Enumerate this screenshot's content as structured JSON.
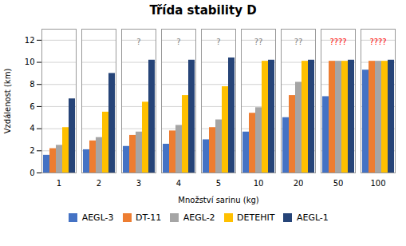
{
  "chart_data": {
    "type": "bar",
    "title": "Třída stability D",
    "xlabel": "Množství sarinu (kg)",
    "ylabel": "Vzdálenost (km)",
    "categories": [
      "1",
      "2",
      "3",
      "4",
      "5",
      "10",
      "20",
      "50",
      "100"
    ],
    "series": [
      {
        "name": "AEGL-3",
        "color": "#4472C4",
        "values": [
          1.6,
          2.1,
          2.4,
          2.6,
          3.0,
          3.7,
          5.0,
          6.9,
          9.3
        ]
      },
      {
        "name": "DT-11",
        "color": "#ED7D31",
        "values": [
          2.2,
          2.9,
          3.4,
          3.8,
          4.1,
          5.4,
          7.0,
          10.1,
          10.1
        ]
      },
      {
        "name": "AEGL-2",
        "color": "#A5A5A5",
        "values": [
          2.5,
          3.2,
          3.7,
          4.3,
          4.8,
          5.9,
          8.2,
          10.1,
          10.1
        ]
      },
      {
        "name": "DETEHIT",
        "color": "#FFC000",
        "values": [
          4.1,
          5.5,
          6.4,
          7.0,
          7.8,
          10.1,
          10.1,
          10.1,
          10.1
        ]
      },
      {
        "name": "AEGL-1",
        "color": "#264478",
        "values": [
          6.7,
          9.0,
          10.2,
          10.2,
          10.4,
          10.2,
          10.2,
          10.2,
          10.2
        ]
      }
    ],
    "annotations": [
      {
        "category": "3",
        "text": "?",
        "color": "#808080",
        "y": 11.6
      },
      {
        "category": "4",
        "text": "?",
        "color": "#808080",
        "y": 11.6
      },
      {
        "category": "5",
        "text": "?",
        "color": "#808080",
        "y": 11.6
      },
      {
        "category": "10",
        "text": "??",
        "color": "#808080",
        "y": 11.6
      },
      {
        "category": "20",
        "text": "??",
        "color": "#808080",
        "y": 11.6
      },
      {
        "category": "50",
        "text": "????",
        "color": "#FF0000",
        "y": 11.6
      },
      {
        "category": "100",
        "text": "????",
        "color": "#FF0000",
        "y": 11.6
      }
    ],
    "ylim": [
      0,
      13
    ],
    "yticks": [
      0,
      2,
      4,
      6,
      8,
      10,
      12
    ],
    "grid": true,
    "legend": "bottom"
  }
}
